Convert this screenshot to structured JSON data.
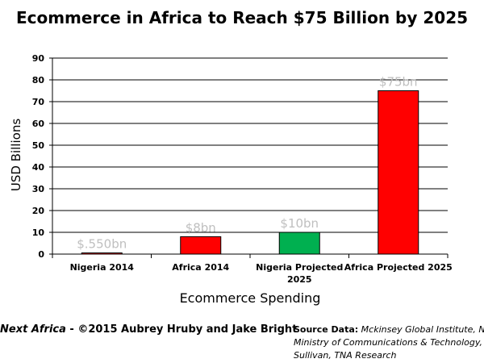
{
  "chart_data": {
    "type": "bar",
    "title": "Ecommerce in Africa to Reach $75 Billion by 2025",
    "xlabel": "Ecommerce Spending",
    "ylabel": "USD Billions",
    "categories": [
      "Nigeria 2014",
      "Africa 2014",
      "Nigeria Projected 2025",
      "Africa Projected 2025"
    ],
    "values": [
      0.55,
      8,
      10,
      75
    ],
    "data_labels": [
      "$.550bn",
      "$8bn",
      "$10bn",
      "$75bn"
    ],
    "colors": [
      "#ff0000",
      "#ff0000",
      "#00b050",
      "#ff0000"
    ],
    "ylim": [
      0,
      90
    ],
    "yticks": [
      0,
      10,
      20,
      30,
      40,
      50,
      60,
      70,
      80,
      90
    ],
    "grid": true,
    "legend": "none"
  },
  "footer": {
    "credit_italic": "Next Africa",
    "credit_rest": " - ©2015 Aubrey Hruby and Jake Bright",
    "source_title": "Source Data:",
    "source_line1": " Mckinsey Global Institute, Nige",
    "source_line2": "Ministry of Communications & Technology, F",
    "source_line3": "Sullivan, TNA Research"
  }
}
